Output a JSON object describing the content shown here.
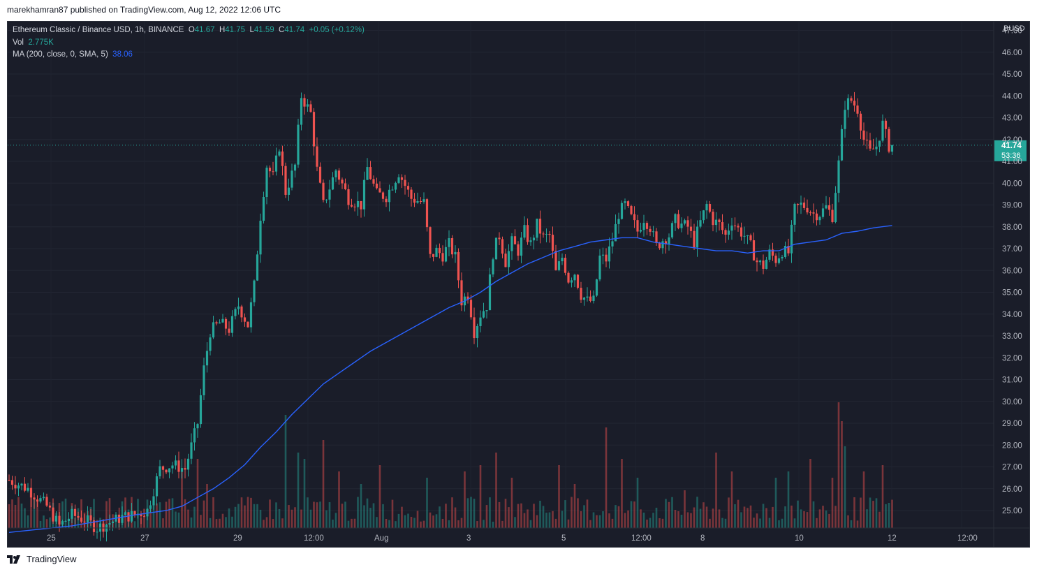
{
  "header": {
    "published_text": "marekhamran87 published on TradingView.com, Aug 12, 2022 12:06 UTC"
  },
  "legend": {
    "symbol": "Ethereum Classic / Binance USD, 1h, BINANCE",
    "o_label": "O",
    "o_value": "41.67",
    "h_label": "H",
    "h_value": "41.75",
    "l_label": "L",
    "l_value": "41.59",
    "c_label": "C",
    "c_value": "41.74",
    "change": "+0.05 (+0.12%)",
    "vol_label": "Vol",
    "vol_value": "2.775K",
    "ma_label": "MA (200, close, 0, SMA, 5)",
    "ma_value": "38.06"
  },
  "footer": {
    "brand": "TradingView"
  },
  "colors": {
    "background": "#1a1d29",
    "up": "#26a69a",
    "down": "#ef5350",
    "ma": "#2962ff",
    "text": "#d1d4dc"
  },
  "chart_data": {
    "type": "candlestick",
    "quote_currency": "BUSD",
    "y_ticks": [
      "25.00",
      "26.00",
      "27.00",
      "28.00",
      "29.00",
      "30.00",
      "31.00",
      "32.00",
      "33.00",
      "34.00",
      "35.00",
      "36.00",
      "37.00",
      "38.00",
      "39.00",
      "40.00",
      "41.00",
      "42.00",
      "43.00",
      "44.00",
      "45.00",
      "46.00",
      "47.00"
    ],
    "x_ticks": [
      "25",
      "27",
      "29",
      "12:00",
      "Aug",
      "3",
      "5",
      "12:00",
      "8",
      "10",
      "12",
      "12:00"
    ],
    "ylim": [
      24.2,
      47.4
    ],
    "last_price": "41.74",
    "countdown": "53:36",
    "close_path": [
      [
        0,
        26.4
      ],
      [
        6,
        26.0
      ],
      [
        12,
        25.2
      ],
      [
        16,
        24.3
      ],
      [
        20,
        24.8
      ],
      [
        24,
        24.6
      ],
      [
        28,
        24.2
      ],
      [
        36,
        24.7
      ],
      [
        40,
        24.8
      ],
      [
        44,
        25.0
      ],
      [
        48,
        26.9
      ],
      [
        52,
        27.1
      ],
      [
        56,
        26.9
      ],
      [
        60,
        29.0
      ],
      [
        62,
        31.5
      ],
      [
        64,
        33.2
      ],
      [
        67,
        33.6
      ],
      [
        70,
        33.3
      ],
      [
        73,
        34.4
      ],
      [
        76,
        33.5
      ],
      [
        78,
        35.3
      ],
      [
        80,
        38.5
      ],
      [
        82,
        40.8
      ],
      [
        84,
        40.3
      ],
      [
        86,
        41.7
      ],
      [
        88,
        39.6
      ],
      [
        91,
        40.8
      ],
      [
        93,
        44.0
      ],
      [
        96,
        43.2
      ],
      [
        98,
        40.6
      ],
      [
        100,
        39.0
      ],
      [
        104,
        40.6
      ],
      [
        108,
        39.3
      ],
      [
        112,
        39.0
      ],
      [
        114,
        40.7
      ],
      [
        117,
        39.5
      ],
      [
        120,
        39.4
      ],
      [
        124,
        40.5
      ],
      [
        128,
        39.3
      ],
      [
        132,
        39.1
      ],
      [
        134,
        36.6
      ],
      [
        136,
        36.9
      ],
      [
        138,
        36.7
      ],
      [
        140,
        37.2
      ],
      [
        142,
        36.6
      ],
      [
        144,
        34.6
      ],
      [
        146,
        34.9
      ],
      [
        147,
        34.1
      ],
      [
        148,
        33.2
      ],
      [
        150,
        34.0
      ],
      [
        152,
        34.4
      ],
      [
        154,
        36.8
      ],
      [
        156,
        37.6
      ],
      [
        158,
        36.4
      ],
      [
        160,
        37.3
      ],
      [
        162,
        36.9
      ],
      [
        164,
        37.8
      ],
      [
        166,
        37.2
      ],
      [
        168,
        38.1
      ],
      [
        170,
        37.5
      ],
      [
        172,
        37.6
      ],
      [
        174,
        35.9
      ],
      [
        176,
        36.6
      ],
      [
        178,
        35.6
      ],
      [
        180,
        35.9
      ],
      [
        182,
        34.9
      ],
      [
        184,
        34.6
      ],
      [
        186,
        34.6
      ],
      [
        188,
        36.6
      ],
      [
        190,
        36.5
      ],
      [
        192,
        37.4
      ],
      [
        194,
        38.6
      ],
      [
        196,
        39.0
      ],
      [
        198,
        38.4
      ],
      [
        200,
        37.8
      ],
      [
        202,
        38.4
      ],
      [
        204,
        38.0
      ],
      [
        206,
        37.1
      ],
      [
        208,
        37.4
      ],
      [
        210,
        37.6
      ],
      [
        212,
        38.3
      ],
      [
        214,
        38.1
      ],
      [
        216,
        38.0
      ],
      [
        218,
        37.3
      ],
      [
        220,
        38.2
      ],
      [
        222,
        39.0
      ],
      [
        224,
        38.3
      ],
      [
        226,
        38.1
      ],
      [
        228,
        37.6
      ],
      [
        230,
        38.3
      ],
      [
        232,
        37.9
      ],
      [
        234,
        37.6
      ],
      [
        236,
        37.1
      ],
      [
        238,
        36.4
      ],
      [
        240,
        36.2
      ],
      [
        242,
        36.8
      ],
      [
        244,
        36.5
      ],
      [
        246,
        36.9
      ],
      [
        248,
        36.8
      ],
      [
        250,
        38.8
      ],
      [
        252,
        39.0
      ],
      [
        254,
        38.9
      ],
      [
        256,
        38.6
      ],
      [
        258,
        38.6
      ],
      [
        260,
        38.9
      ],
      [
        262,
        38.5
      ],
      [
        264,
        40.9
      ],
      [
        266,
        43.6
      ],
      [
        268,
        43.8
      ],
      [
        270,
        43.4
      ],
      [
        272,
        42.0
      ],
      [
        274,
        41.4
      ],
      [
        276,
        41.7
      ],
      [
        278,
        42.7
      ],
      [
        280,
        41.7
      ],
      [
        281,
        41.74
      ]
    ],
    "ma200_path": [
      [
        0,
        24.0
      ],
      [
        20,
        24.3
      ],
      [
        40,
        24.8
      ],
      [
        45,
        24.9
      ],
      [
        50,
        25.0
      ],
      [
        55,
        25.2
      ],
      [
        60,
        25.6
      ],
      [
        65,
        26.0
      ],
      [
        70,
        26.5
      ],
      [
        75,
        27.1
      ],
      [
        80,
        27.9
      ],
      [
        85,
        28.6
      ],
      [
        90,
        29.4
      ],
      [
        95,
        30.1
      ],
      [
        100,
        30.8
      ],
      [
        105,
        31.3
      ],
      [
        110,
        31.8
      ],
      [
        115,
        32.3
      ],
      [
        120,
        32.7
      ],
      [
        125,
        33.1
      ],
      [
        130,
        33.5
      ],
      [
        135,
        33.9
      ],
      [
        140,
        34.3
      ],
      [
        145,
        34.6
      ],
      [
        150,
        35.0
      ],
      [
        155,
        35.5
      ],
      [
        160,
        35.9
      ],
      [
        165,
        36.3
      ],
      [
        170,
        36.6
      ],
      [
        175,
        36.9
      ],
      [
        180,
        37.1
      ],
      [
        185,
        37.3
      ],
      [
        190,
        37.4
      ],
      [
        195,
        37.5
      ],
      [
        200,
        37.5
      ],
      [
        205,
        37.3
      ],
      [
        210,
        37.2
      ],
      [
        215,
        37.1
      ],
      [
        220,
        37.0
      ],
      [
        225,
        36.9
      ],
      [
        230,
        36.9
      ],
      [
        235,
        36.8
      ],
      [
        240,
        36.9
      ],
      [
        245,
        36.9
      ],
      [
        250,
        37.2
      ],
      [
        255,
        37.3
      ],
      [
        260,
        37.4
      ],
      [
        265,
        37.7
      ],
      [
        270,
        37.8
      ],
      [
        275,
        37.95
      ],
      [
        281,
        38.06
      ]
    ],
    "volume_spikes": [
      [
        55,
        0.45
      ],
      [
        60,
        0.55
      ],
      [
        63,
        0.35
      ],
      [
        88,
        0.9
      ],
      [
        92,
        0.6
      ],
      [
        94,
        0.55
      ],
      [
        100,
        0.7
      ],
      [
        105,
        0.45
      ],
      [
        112,
        0.35
      ],
      [
        118,
        0.5
      ],
      [
        133,
        0.4
      ],
      [
        145,
        0.45
      ],
      [
        150,
        0.5
      ],
      [
        155,
        0.6
      ],
      [
        160,
        0.4
      ],
      [
        175,
        0.5
      ],
      [
        180,
        0.35
      ],
      [
        190,
        0.8
      ],
      [
        195,
        0.55
      ],
      [
        200,
        0.4
      ],
      [
        215,
        0.3
      ],
      [
        225,
        0.6
      ],
      [
        230,
        0.45
      ],
      [
        244,
        0.4
      ],
      [
        248,
        0.45
      ],
      [
        255,
        0.55
      ],
      [
        262,
        0.4
      ],
      [
        264,
        1.0
      ],
      [
        265,
        0.85
      ],
      [
        266,
        0.65
      ],
      [
        272,
        0.45
      ],
      [
        278,
        0.5
      ],
      [
        280,
        0.2
      ]
    ]
  }
}
